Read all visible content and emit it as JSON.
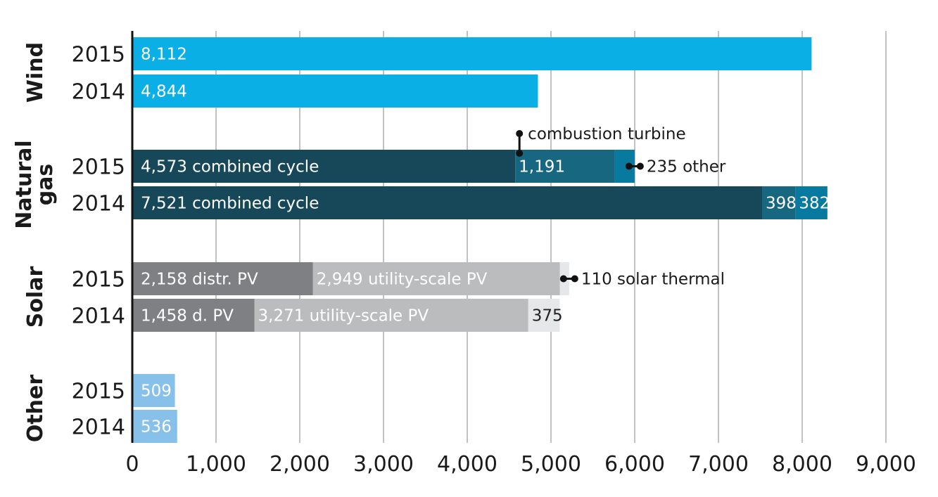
{
  "chart_data": {
    "type": "bar",
    "orientation": "horizontal",
    "stacked": true,
    "xlim": [
      0,
      9000
    ],
    "xticks": [
      "0",
      "1,000",
      "2,000",
      "3,000",
      "4,000",
      "5,000",
      "6,000",
      "7,000",
      "8,000",
      "9,000"
    ],
    "grid": true,
    "colors": {
      "wind": "#0aafe6",
      "gas_combined": "#17485a",
      "gas_turbine": "#186780",
      "gas_other": "#08799f",
      "solar_distr": "#7e8083",
      "solar_utility": "#bbbcbe",
      "solar_thermal": "#e6e7e9",
      "other": "#87c1ea"
    },
    "groups": [
      {
        "name": "Wind",
        "rows": [
          {
            "year": "2015",
            "segments": [
              {
                "value": 8112,
                "label": "8,112",
                "color_key": "wind"
              }
            ]
          },
          {
            "year": "2014",
            "segments": [
              {
                "value": 4844,
                "label": "4,844",
                "color_key": "wind"
              }
            ]
          }
        ]
      },
      {
        "name": "Natural\ngas",
        "rows": [
          {
            "year": "2015",
            "segments": [
              {
                "value": 4573,
                "label": "4,573 combined cycle",
                "color_key": "gas_combined"
              },
              {
                "value": 1191,
                "label": "1,191",
                "color_key": "gas_turbine"
              },
              {
                "value": 235,
                "label": "",
                "color_key": "gas_other"
              }
            ]
          },
          {
            "year": "2014",
            "segments": [
              {
                "value": 7521,
                "label": "7,521 combined cycle",
                "color_key": "gas_combined"
              },
              {
                "value": 398,
                "label": "398",
                "color_key": "gas_turbine"
              },
              {
                "value": 382,
                "label": "382",
                "color_key": "gas_other"
              }
            ]
          }
        ]
      },
      {
        "name": "Solar",
        "rows": [
          {
            "year": "2015",
            "segments": [
              {
                "value": 2158,
                "label": "2,158 distr. PV",
                "color_key": "solar_distr"
              },
              {
                "value": 2949,
                "label": "2,949 utility-scale PV",
                "color_key": "solar_utility"
              },
              {
                "value": 110,
                "label": "",
                "color_key": "solar_thermal"
              }
            ]
          },
          {
            "year": "2014",
            "segments": [
              {
                "value": 1458,
                "label": "1,458 d. PV",
                "color_key": "solar_distr"
              },
              {
                "value": 3271,
                "label": "3,271 utility-scale PV",
                "color_key": "solar_utility"
              },
              {
                "value": 375,
                "label": "375",
                "color_key": "solar_thermal"
              }
            ]
          }
        ]
      },
      {
        "name": "Other",
        "rows": [
          {
            "year": "2015",
            "segments": [
              {
                "value": 509,
                "label": "509",
                "color_key": "other"
              }
            ]
          },
          {
            "year": "2014",
            "segments": [
              {
                "value": 536,
                "label": "536",
                "color_key": "other"
              }
            ]
          }
        ]
      }
    ],
    "annotations": [
      {
        "text": "combustion turbine",
        "group": 1,
        "row": 0,
        "segment": 1
      },
      {
        "text": "235 other",
        "group": 1,
        "row": 0,
        "segment": 2
      },
      {
        "text": "110 solar thermal",
        "group": 2,
        "row": 0,
        "segment": 2
      }
    ]
  }
}
